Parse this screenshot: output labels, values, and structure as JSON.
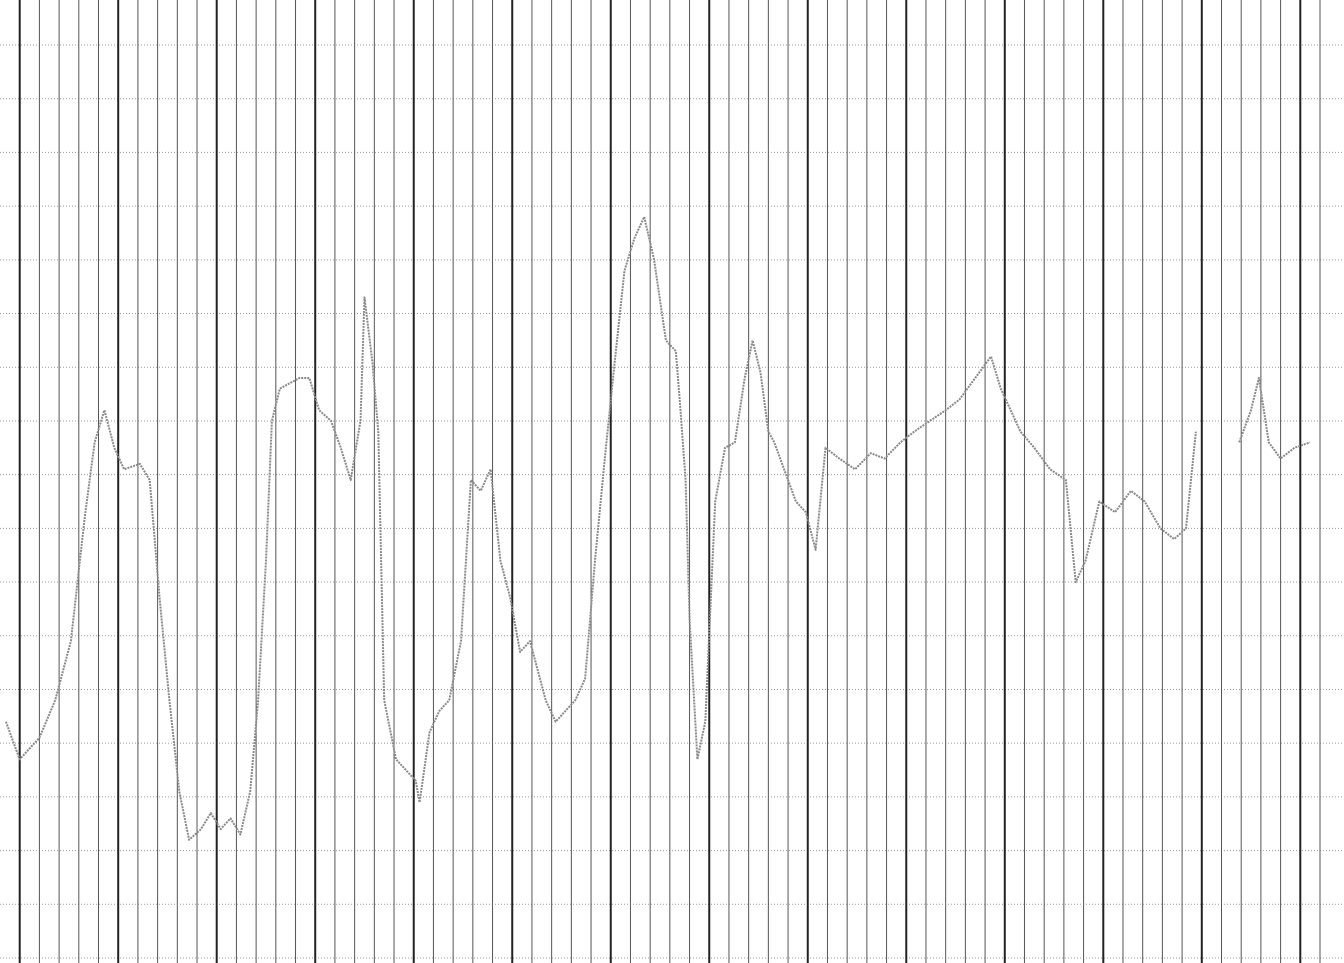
{
  "chart_data": {
    "type": "line",
    "grid": true,
    "xlim": [
      -1,
      66
    ],
    "ylim": [
      0,
      17
    ],
    "xticks": [
      0,
      1,
      2,
      3,
      4,
      5,
      6,
      7,
      8,
      9,
      10,
      11,
      12,
      13,
      14,
      15,
      16,
      17,
      18,
      19,
      20,
      21,
      22,
      23,
      24,
      25,
      26,
      27,
      28,
      29,
      30,
      31,
      32,
      33,
      34,
      35,
      36,
      37,
      38,
      39,
      40,
      41,
      42,
      43,
      44,
      45,
      46,
      47,
      48,
      49,
      50,
      51,
      52,
      53,
      54,
      55,
      56,
      57,
      58,
      59,
      60,
      61,
      62,
      63,
      64,
      65,
      66
    ],
    "yticks": [
      0,
      1,
      2,
      3,
      4,
      5,
      6,
      7,
      8,
      9,
      10,
      11,
      12,
      13,
      14,
      15,
      16,
      17
    ],
    "series": [
      {
        "color": "#8a8a8a",
        "x": [
          -0.7,
          0.0,
          1.0,
          1.8,
          2.6,
          3.3,
          3.8,
          4.3,
          4.8,
          5.3,
          6.1,
          6.6,
          7.1,
          7.6,
          8.1,
          8.6,
          9.2,
          9.7,
          10.2,
          10.7,
          11.2,
          11.7,
          12.1,
          12.5,
          12.8,
          13.2,
          13.7,
          14.2,
          14.7,
          15.2,
          15.8,
          16.3,
          16.8,
          17.3,
          17.5,
          17.9,
          18.2,
          18.5,
          19.1,
          19.6,
          20.1,
          20.3,
          20.8,
          21.3,
          21.8,
          22.4,
          22.9,
          23.4,
          23.9,
          24.4,
          24.9,
          25.4,
          25.9,
          26.7,
          27.2,
          27.7,
          28.2,
          28.7,
          29.2,
          29.7,
          30.2,
          30.7,
          31.2,
          31.7,
          32.2,
          32.8,
          33.3,
          33.5,
          33.8,
          34.0,
          34.4,
          34.8,
          35.3,
          35.8,
          36.3,
          36.8,
          37.2,
          37.6,
          38.0,
          38.3,
          38.8,
          39.4,
          39.9,
          40.4,
          40.9,
          41.6,
          42.4,
          43.2,
          43.9,
          44.7,
          45.4,
          46.2,
          47.0,
          47.7,
          48.5,
          49.3,
          49.8,
          50.3,
          50.8,
          51.5,
          52.3,
          53.1,
          53.6,
          54.1,
          54.8,
          55.6,
          56.4,
          57.1,
          57.9,
          58.6,
          59.2,
          59.7,
          60.8,
          61.9,
          62.5,
          62.9,
          63.4,
          64.0,
          64.7,
          65.5
        ],
        "values": [
          4.4,
          3.7,
          4.1,
          4.8,
          5.9,
          8.2,
          9.6,
          10.2,
          9.5,
          9.1,
          9.2,
          8.9,
          6.7,
          4.8,
          3.1,
          2.2,
          2.4,
          2.7,
          2.4,
          2.6,
          2.3,
          3.1,
          4.8,
          7.4,
          10.0,
          10.6,
          10.7,
          10.8,
          10.8,
          10.2,
          10.0,
          9.5,
          8.9,
          10.0,
          12.3,
          11.1,
          9.8,
          4.8,
          3.7,
          3.5,
          3.3,
          2.9,
          4.2,
          4.6,
          4.8,
          5.9,
          8.9,
          8.7,
          9.1,
          7.4,
          6.7,
          5.7,
          5.9,
          4.8,
          4.4,
          4.6,
          4.8,
          5.2,
          7.4,
          9.3,
          11.1,
          12.8,
          13.4,
          13.8,
          13.0,
          11.5,
          11.3,
          10.4,
          8.9,
          6.3,
          3.7,
          4.4,
          8.5,
          9.5,
          9.6,
          10.8,
          11.5,
          10.9,
          9.8,
          9.6,
          9.1,
          8.5,
          8.3,
          7.6,
          9.5,
          9.3,
          9.1,
          9.4,
          9.3,
          9.6,
          9.8,
          10.0,
          10.2,
          10.4,
          10.8,
          11.2,
          10.6,
          10.2,
          9.8,
          9.5,
          9.1,
          8.9,
          7.0,
          7.4,
          8.5,
          8.3,
          8.7,
          8.5,
          8.0,
          7.8,
          8.0,
          9.8,
          null,
          9.6,
          10.2,
          10.8,
          9.6,
          9.3,
          9.5,
          9.6
        ]
      }
    ]
  }
}
